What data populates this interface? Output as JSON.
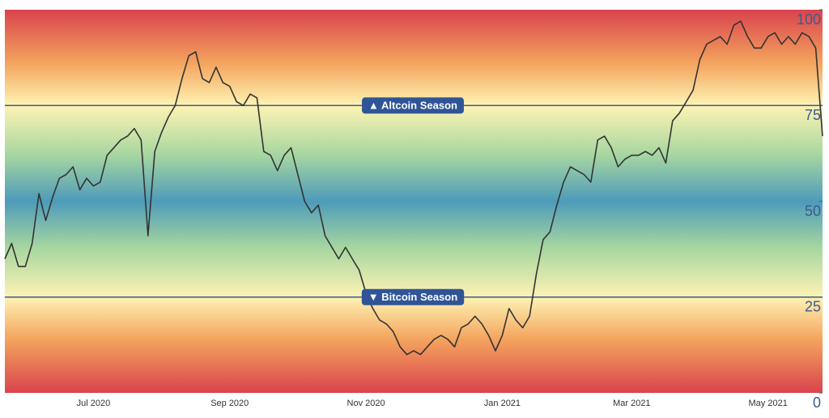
{
  "chart_data": {
    "type": "line",
    "categories": [
      null,
      null,
      null,
      null,
      null,
      null,
      null,
      null,
      null,
      null,
      null,
      null,
      null,
      "Jul 2020",
      null,
      null,
      null,
      null,
      null,
      null,
      null,
      null,
      null,
      null,
      null,
      null,
      null,
      null,
      null,
      null,
      null,
      null,
      null,
      "Sep 2020",
      null,
      null,
      null,
      null,
      null,
      null,
      null,
      null,
      null,
      null,
      null,
      null,
      null,
      null,
      null,
      null,
      null,
      null,
      null,
      "Nov 2020",
      null,
      null,
      null,
      null,
      null,
      null,
      null,
      null,
      null,
      null,
      null,
      null,
      null,
      null,
      null,
      null,
      null,
      null,
      null,
      "Jan 2021",
      null,
      null,
      null,
      null,
      null,
      null,
      null,
      null,
      null,
      null,
      null,
      null,
      null,
      null,
      null,
      null,
      null,
      null,
      "Mar 2021",
      null,
      null,
      null,
      null,
      null,
      null,
      null,
      null,
      null,
      null,
      null,
      null,
      null,
      null,
      null,
      null,
      null,
      null,
      null,
      "May 2021",
      null,
      null,
      null,
      null,
      null,
      null,
      null,
      null
    ],
    "values": [
      35,
      39,
      33,
      33,
      39,
      52,
      45,
      51,
      56,
      57,
      59,
      53,
      56,
      54,
      55,
      62,
      64,
      66,
      67,
      69,
      66,
      41,
      63,
      68,
      72,
      75,
      82,
      88,
      89,
      82,
      81,
      85,
      81,
      80,
      76,
      75,
      78,
      77,
      63,
      62,
      58,
      62,
      64,
      57,
      50,
      47,
      49,
      41,
      38,
      35,
      38,
      35,
      32,
      26,
      22,
      19,
      18,
      16,
      12,
      10,
      11,
      10,
      12,
      14,
      15,
      14,
      12,
      17,
      18,
      20,
      18,
      15,
      11,
      15,
      22,
      19,
      17,
      20,
      31,
      40,
      42,
      49,
      55,
      59,
      58,
      57,
      55,
      66,
      67,
      64,
      59,
      61,
      62,
      62,
      63,
      62,
      64,
      60,
      71,
      73,
      76,
      79,
      87,
      91,
      92,
      93,
      91,
      96,
      97,
      93,
      90,
      90,
      93,
      94,
      91,
      93,
      91,
      94,
      93,
      90,
      67
    ],
    "color": "#333333",
    "ylim": [
      0,
      100
    ],
    "yticks": [
      0,
      25,
      50,
      75,
      100
    ],
    "annotations": [
      {
        "text": "▲ Altcoin Season",
        "value": 75
      },
      {
        "text": "▼ Bitcoin Season",
        "value": 25
      }
    ]
  }
}
